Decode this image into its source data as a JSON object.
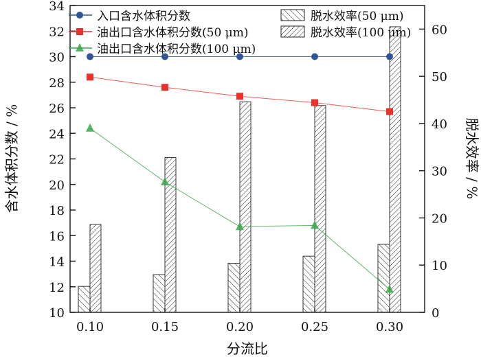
{
  "chart_data": {
    "type": "bar+line",
    "xlabel": "分流比",
    "ylabel_left": "含水体积分数 / %",
    "ylabel_right": "脱水效率 / %",
    "categories": [
      "0.10",
      "0.15",
      "0.20",
      "0.25",
      "0.30"
    ],
    "ylim_left": [
      10,
      34
    ],
    "yticks_left": [
      "10",
      "12",
      "14",
      "16",
      "18",
      "20",
      "22",
      "24",
      "26",
      "28",
      "30",
      "32",
      "34"
    ],
    "ylim_right": [
      0,
      65
    ],
    "yticks_right": [
      "0",
      "10",
      "20",
      "30",
      "40",
      "50",
      "60"
    ],
    "lines": [
      {
        "name": "入口含水体积分数",
        "color": "#2f5597",
        "marker": "circle",
        "values": [
          30,
          30,
          30,
          30,
          30
        ]
      },
      {
        "name": "油出口含水体积分数(50 μm)",
        "color": "#e8302c",
        "marker": "square",
        "values": [
          28.4,
          27.6,
          26.9,
          26.4,
          25.7
        ]
      },
      {
        "name": "油出口含水体积分数(100 μm)",
        "color": "#3aa64a",
        "marker": "triangle",
        "values": [
          24.4,
          20.2,
          16.7,
          16.8,
          11.8
        ]
      }
    ],
    "bars": [
      {
        "name": "脱水效率(50 μm)",
        "hatch": "backslash",
        "values": [
          5.5,
          8.0,
          10.4,
          11.9,
          14.4
        ]
      },
      {
        "name": "脱水效率(100 μm)",
        "hatch": "slash",
        "values": [
          18.6,
          32.8,
          44.6,
          43.8,
          60.5
        ]
      }
    ],
    "legend": "top"
  }
}
